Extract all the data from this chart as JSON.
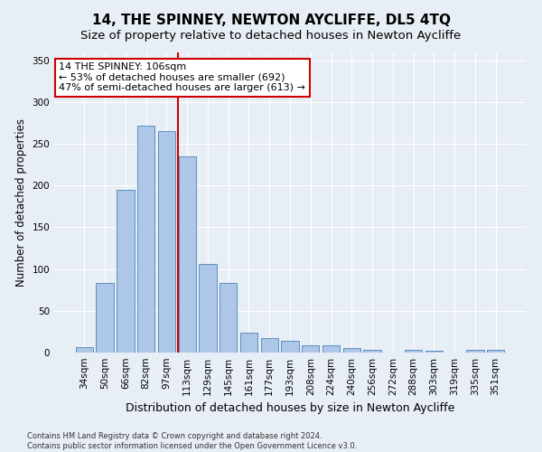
{
  "title": "14, THE SPINNEY, NEWTON AYCLIFFE, DL5 4TQ",
  "subtitle": "Size of property relative to detached houses in Newton Aycliffe",
  "xlabel": "Distribution of detached houses by size in Newton Aycliffe",
  "ylabel": "Number of detached properties",
  "footer1": "Contains HM Land Registry data © Crown copyright and database right 2024.",
  "footer2": "Contains public sector information licensed under the Open Government Licence v3.0.",
  "categories": [
    "34sqm",
    "50sqm",
    "66sqm",
    "82sqm",
    "97sqm",
    "113sqm",
    "129sqm",
    "145sqm",
    "161sqm",
    "177sqm",
    "193sqm",
    "208sqm",
    "224sqm",
    "240sqm",
    "256sqm",
    "272sqm",
    "288sqm",
    "303sqm",
    "319sqm",
    "335sqm",
    "351sqm"
  ],
  "values": [
    6,
    83,
    195,
    272,
    265,
    235,
    106,
    83,
    24,
    17,
    14,
    9,
    9,
    5,
    3,
    0,
    3,
    2,
    0,
    3,
    3
  ],
  "bar_color": "#aec6e8",
  "bar_edge_color": "#5a8fc2",
  "vline_x": 4.56,
  "vline_color": "#cc0000",
  "annotation_text": "14 THE SPINNEY: 106sqm\n← 53% of detached houses are smaller (692)\n47% of semi-detached houses are larger (613) →",
  "annotation_box_color": "#ffffff",
  "annotation_box_edgecolor": "#cc0000",
  "ylim": [
    0,
    360
  ],
  "yticks": [
    0,
    50,
    100,
    150,
    200,
    250,
    300,
    350
  ],
  "bg_color": "#e8eef5",
  "plot_bg_color": "#e8eef5",
  "title_fontsize": 11,
  "subtitle_fontsize": 9.5,
  "xlabel_fontsize": 9,
  "ylabel_fontsize": 8.5,
  "tick_fontsize": 7.5,
  "annotation_fontsize": 8,
  "footer_fontsize": 6
}
